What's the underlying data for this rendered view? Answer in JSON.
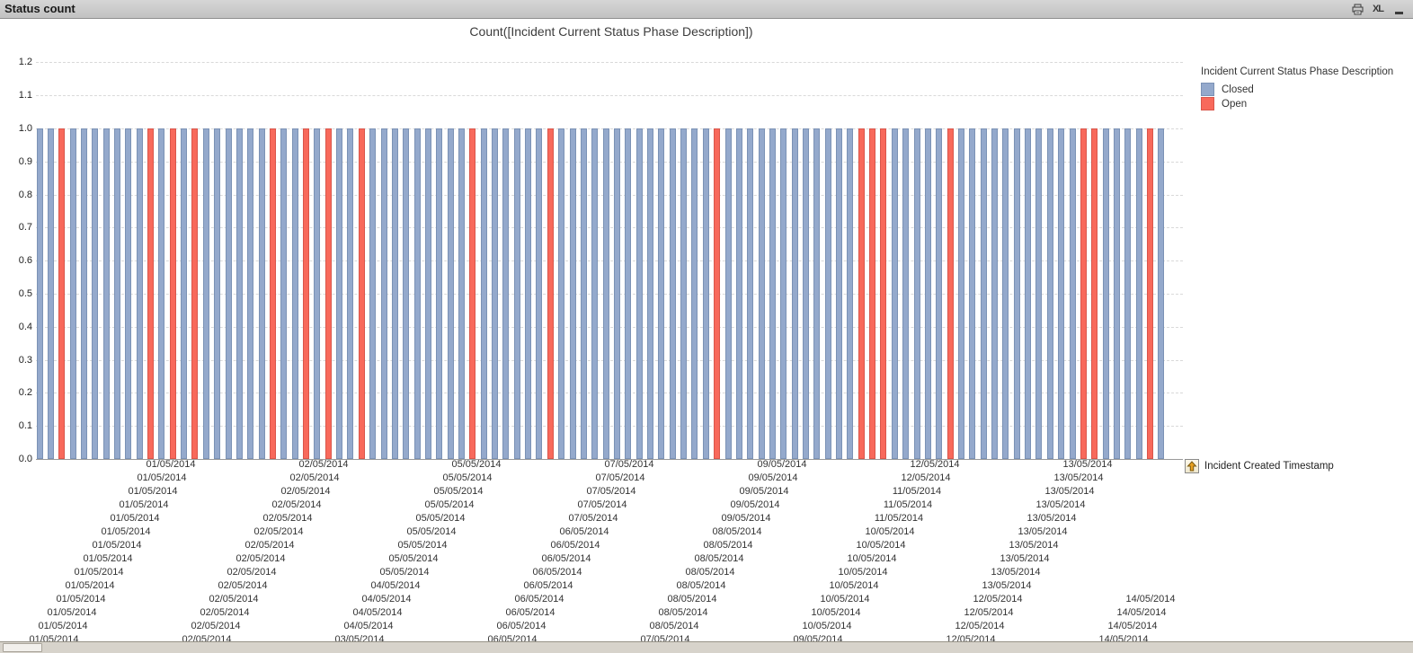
{
  "window": {
    "title": "Status count",
    "caption_icons": {
      "excel_label": "XL"
    }
  },
  "chart_data": {
    "type": "bar",
    "title": "Count([Incident Current Status Phase Description])",
    "x_dimension_label": "Incident Created Timestamp",
    "ylim": [
      0.0,
      1.2
    ],
    "yticks": [
      "0.0",
      "0.1",
      "0.2",
      "0.3",
      "0.4",
      "0.5",
      "0.6",
      "0.7",
      "0.8",
      "0.9",
      "1.0",
      "1.1",
      "1.2"
    ],
    "grid": true,
    "bar_value": 1.0,
    "legend": {
      "title": "Incident Current Status Phase Description",
      "position": "right",
      "items": [
        {
          "label": "Closed",
          "color": "#94a9cc",
          "border": "#7b92b5"
        },
        {
          "label": "Open",
          "color": "#f8695b",
          "border": "#d9564b"
        }
      ]
    },
    "bars": {
      "dates": [
        "01/05/2014",
        "01/05/2014",
        "01/05/2014",
        "01/05/2014",
        "01/05/2014",
        "01/05/2014",
        "01/05/2014",
        "01/05/2014",
        "01/05/2014",
        "01/05/2014",
        "01/05/2014",
        "01/05/2014",
        "01/05/2014",
        "01/05/2014",
        "02/05/2014",
        "02/05/2014",
        "02/05/2014",
        "02/05/2014",
        "02/05/2014",
        "02/05/2014",
        "02/05/2014",
        "02/05/2014",
        "02/05/2014",
        "02/05/2014",
        "02/05/2014",
        "02/05/2014",
        "02/05/2014",
        "02/05/2014",
        "03/05/2014",
        "04/05/2014",
        "04/05/2014",
        "04/05/2014",
        "04/05/2014",
        "05/05/2014",
        "05/05/2014",
        "05/05/2014",
        "05/05/2014",
        "05/05/2014",
        "05/05/2014",
        "05/05/2014",
        "05/05/2014",
        "05/05/2014",
        "06/05/2014",
        "06/05/2014",
        "06/05/2014",
        "06/05/2014",
        "06/05/2014",
        "06/05/2014",
        "06/05/2014",
        "06/05/2014",
        "06/05/2014",
        "07/05/2014",
        "07/05/2014",
        "07/05/2014",
        "07/05/2014",
        "07/05/2014",
        "07/05/2014",
        "08/05/2014",
        "08/05/2014",
        "08/05/2014",
        "08/05/2014",
        "08/05/2014",
        "08/05/2014",
        "08/05/2014",
        "08/05/2014",
        "09/05/2014",
        "09/05/2014",
        "09/05/2014",
        "09/05/2014",
        "09/05/2014",
        "09/05/2014",
        "10/05/2014",
        "10/05/2014",
        "10/05/2014",
        "10/05/2014",
        "10/05/2014",
        "10/05/2014",
        "10/05/2014",
        "10/05/2014",
        "11/05/2014",
        "11/05/2014",
        "11/05/2014",
        "12/05/2014",
        "12/05/2014",
        "12/05/2014",
        "12/05/2014",
        "12/05/2014",
        "12/05/2014",
        "13/05/2014",
        "13/05/2014",
        "13/05/2014",
        "13/05/2014",
        "13/05/2014",
        "13/05/2014",
        "13/05/2014",
        "13/05/2014",
        "13/05/2014",
        "13/05/2014",
        "14/05/2014",
        "14/05/2014",
        "14/05/2014",
        "14/05/2014"
      ],
      "open_indices": [
        2,
        10,
        12,
        14,
        21,
        24,
        26,
        29,
        39,
        46,
        61,
        74,
        75,
        76,
        82,
        94,
        95,
        100
      ],
      "statuses_legend": [
        "Closed",
        "Open"
      ]
    }
  },
  "dimension_indicator": {
    "label": "Incident Created Timestamp"
  }
}
